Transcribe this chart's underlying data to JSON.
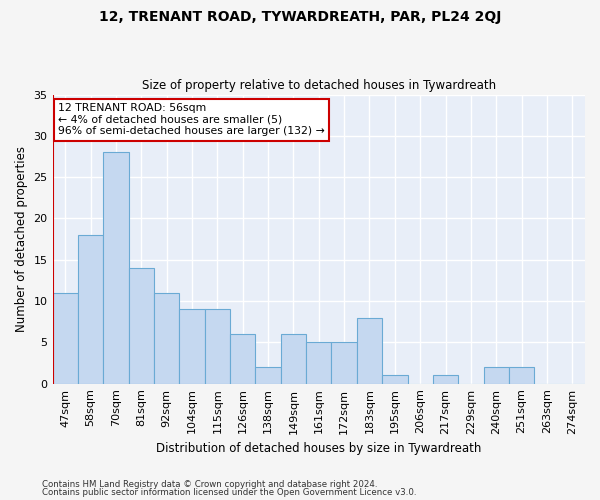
{
  "title": "12, TRENANT ROAD, TYWARDREATH, PAR, PL24 2QJ",
  "subtitle": "Size of property relative to detached houses in Tywardreath",
  "xlabel": "Distribution of detached houses by size in Tywardreath",
  "ylabel": "Number of detached properties",
  "categories": [
    "47sqm",
    "58sqm",
    "70sqm",
    "81sqm",
    "92sqm",
    "104sqm",
    "115sqm",
    "126sqm",
    "138sqm",
    "149sqm",
    "161sqm",
    "172sqm",
    "183sqm",
    "195sqm",
    "206sqm",
    "217sqm",
    "229sqm",
    "240sqm",
    "251sqm",
    "263sqm",
    "274sqm"
  ],
  "values": [
    11,
    18,
    28,
    14,
    11,
    9,
    9,
    6,
    2,
    6,
    5,
    5,
    8,
    1,
    0,
    1,
    0,
    2,
    2,
    0,
    0
  ],
  "bar_color": "#c5d8f0",
  "bar_edge_color": "#6aaad4",
  "annotation_title": "12 TRENANT ROAD: 56sqm",
  "annotation_line1": "← 4% of detached houses are smaller (5)",
  "annotation_line2": "96% of semi-detached houses are larger (132) →",
  "annotation_box_color": "#ffffff",
  "annotation_border_color": "#cc0000",
  "red_line_color": "#cc0000",
  "red_line_x": -0.5,
  "ylim": [
    0,
    35
  ],
  "yticks": [
    0,
    5,
    10,
    15,
    20,
    25,
    30,
    35
  ],
  "plot_bg_color": "#e8eef8",
  "fig_bg_color": "#f5f5f5",
  "grid_color": "#ffffff",
  "footer1": "Contains HM Land Registry data © Crown copyright and database right 2024.",
  "footer2": "Contains public sector information licensed under the Open Government Licence v3.0."
}
